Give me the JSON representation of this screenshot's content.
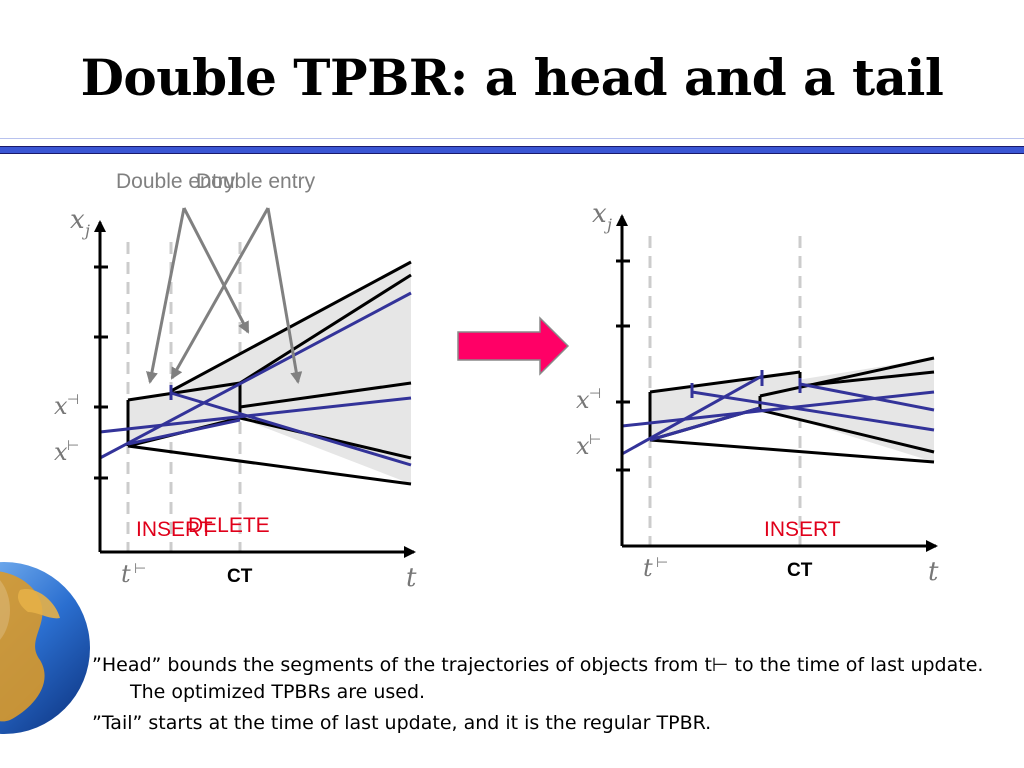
{
  "title": "Double TPBR: a head and a tail",
  "left": {
    "annotation_1": "Double entry",
    "annotation_2": "Double entry",
    "y_axis": "x",
    "y_axis_sub": "j",
    "tick_x_upper": "x",
    "tick_x_upper_sup": "⊣",
    "tick_x_lower": "x",
    "tick_x_lower_sup": "⊢",
    "t_start": "t",
    "t_start_sup": "⊢",
    "ct": "CT",
    "x_axis": "t",
    "insert": "INSERT",
    "delete": "DELETE"
  },
  "right": {
    "y_axis": "x",
    "y_axis_sub": "j",
    "tick_x_upper": "x",
    "tick_x_upper_sup": "⊣",
    "tick_x_lower": "x",
    "tick_x_lower_sup": "⊢",
    "t_start": "t",
    "t_start_sup": "⊢",
    "ct": "CT",
    "x_axis": "t",
    "insert": "INSERT"
  },
  "bullets": [
    "”Head” bounds the segments of the trajectories of objects from t⊢ to the time of last update. The optimized TPBRs are used.",
    "”Tail” starts at the time of last update, and it is the regular TPBR."
  ],
  "colors": {
    "rule": "#3a56d4",
    "trajectory": "#333399",
    "arrow": "#ff0066",
    "label_red": "#e0001a",
    "annotation_gray": "#808080"
  },
  "icons": [
    "globe-icon",
    "arrow-right-icon"
  ]
}
